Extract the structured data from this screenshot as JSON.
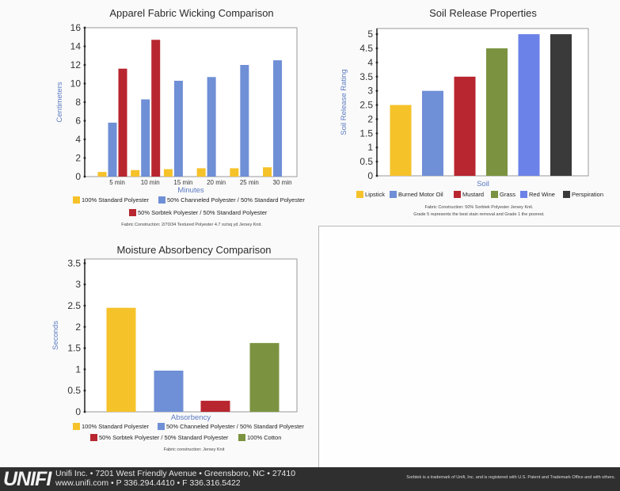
{
  "colors": {
    "yellow": "#f6c22a",
    "blue": "#6f8fd6",
    "red": "#b8262f",
    "green": "#7b9340",
    "bright_blue": "#6b82e8",
    "dark": "#3a3a3a",
    "axis_text": "#5a79c2"
  },
  "chart_data": [
    {
      "id": "wicking",
      "type": "bar",
      "title": "Apparel Fabric Wicking Comparison",
      "xlabel": "Minutes",
      "ylabel": "Centimeters",
      "categories": [
        "5 min",
        "10 min",
        "15  min",
        "20 min",
        "25 min",
        "30 min"
      ],
      "ylim": [
        0,
        16
      ],
      "yticks": [
        0,
        2,
        4,
        6,
        8,
        10,
        12,
        14,
        16
      ],
      "series": [
        {
          "name": "100% Standard Polyester",
          "color": "#f6c22a",
          "values": [
            0.5,
            0.7,
            0.8,
            0.9,
            0.9,
            1.0
          ]
        },
        {
          "name": "50% Channeled Polyester / 50% Standard Polyester",
          "color": "#6f8fd6",
          "values": [
            5.8,
            8.3,
            10.3,
            10.7,
            12.0,
            12.5
          ]
        },
        {
          "name": "50% Sorbtek Polyester / 50% Standard Polyester",
          "color": "#b8262f",
          "values": [
            11.6,
            14.7,
            null,
            null,
            null,
            null
          ]
        }
      ],
      "note": "Fabric Construction:  2/70/34 Textured Polyester 4.7 oz/sq yd Jersey Knit."
    },
    {
      "id": "soil",
      "type": "bar",
      "title": "Soil Release Properties",
      "xlabel": "Soil",
      "ylabel": "Soil Release Rating",
      "categories": [
        "Lipstick",
        "Burned Motor Oil",
        "Mustard",
        "Grass",
        "Red Wine",
        "Perspiration"
      ],
      "values": [
        2.5,
        3.0,
        3.5,
        4.5,
        5.0,
        5.0
      ],
      "colors": [
        "#f6c22a",
        "#6f8fd6",
        "#b8262f",
        "#7b9340",
        "#6b82e8",
        "#3a3a3a"
      ],
      "ylim": [
        0,
        5.2
      ],
      "yticks": [
        0,
        0.5,
        1,
        1.5,
        2,
        2.5,
        3,
        3.5,
        4,
        4.5,
        5
      ],
      "note1": "Fabric Construction:  50% Sorbtek Polyester Jersey Knit.",
      "note2": "Grade 5 represents the best stain removal and Grade 1 the poorest."
    },
    {
      "id": "moisture",
      "type": "bar",
      "title": "Moisture Absorbency Comparison",
      "xlabel": "Absorbency",
      "ylabel": "Seconds",
      "categories": [
        "100% Standard Polyester",
        "50% Channeled Polyester / 50% Standard Polyester",
        "50% Sorbtek Polyester / 50% Standard Polyester",
        "100% Cotton"
      ],
      "values": [
        2.45,
        0.97,
        0.26,
        1.62
      ],
      "colors": [
        "#f6c22a",
        "#6f8fd6",
        "#b8262f",
        "#7b9340"
      ],
      "ylim": [
        0,
        3.6
      ],
      "yticks": [
        0,
        0.5,
        1,
        1.5,
        2,
        2.5,
        3,
        3.5
      ],
      "note": "Fabric construction:  Jersey Knit"
    }
  ],
  "footer": {
    "logo": "UNIFI",
    "address_line1": "Unifi Inc. • 7201 West Friendly Avenue • Greensboro, NC • 27410",
    "address_line2": "www.unifi.com • P 336.294.4410 • F 336.316.5422",
    "trademark": "Sorbtek is a trademark of Unifi, Inc. and is registered with U.S. Patent and Trademark Office and with others."
  }
}
